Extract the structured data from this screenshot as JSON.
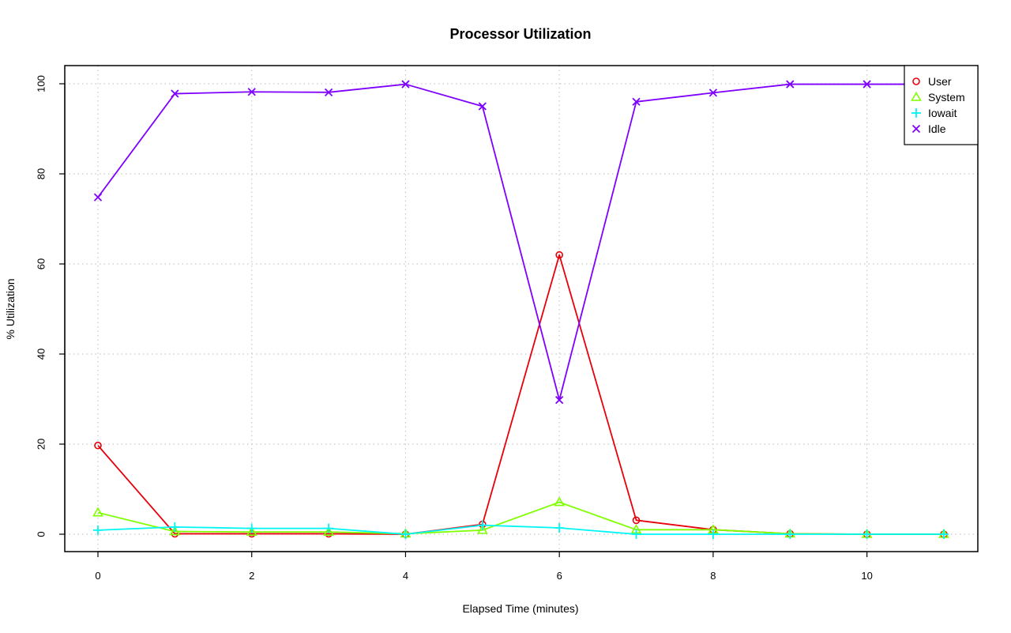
{
  "chart_data": {
    "type": "line",
    "title": "Processor Utilization",
    "xlabel": "Elapsed Time (minutes)",
    "ylabel": "% Utilization",
    "xlim": [
      0,
      11
    ],
    "ylim": [
      0,
      100
    ],
    "x_ticks": [
      0,
      2,
      4,
      6,
      8,
      10
    ],
    "y_ticks": [
      0,
      20,
      40,
      60,
      80,
      100
    ],
    "grid": true,
    "legend_position": "top-right",
    "x": [
      0,
      1,
      2,
      3,
      4,
      5,
      6,
      7,
      8,
      9,
      10,
      11
    ],
    "series": [
      {
        "name": "User",
        "color": "#e8000b",
        "marker": "circle",
        "values": [
          19.7,
          0.1,
          0.1,
          0.1,
          0.0,
          2.2,
          62.0,
          3.1,
          1.0,
          0.1,
          0.0,
          0.0
        ]
      },
      {
        "name": "System",
        "color": "#7fff00",
        "marker": "triangle",
        "values": [
          4.8,
          0.6,
          0.5,
          0.5,
          0.1,
          0.9,
          7.1,
          1.0,
          1.0,
          0.1,
          0.0,
          0.0
        ]
      },
      {
        "name": "Iowait",
        "color": "#00f5f5",
        "marker": "plus",
        "values": [
          0.9,
          1.6,
          1.3,
          1.3,
          0.0,
          2.0,
          1.4,
          0.0,
          0.0,
          0.0,
          0.0,
          0.0
        ]
      },
      {
        "name": "Idle",
        "color": "#7f00ff",
        "marker": "cross",
        "values": [
          74.8,
          97.8,
          98.2,
          98.1,
          99.9,
          95.0,
          29.8,
          96.0,
          98.0,
          99.9,
          99.9,
          99.9
        ]
      }
    ]
  }
}
